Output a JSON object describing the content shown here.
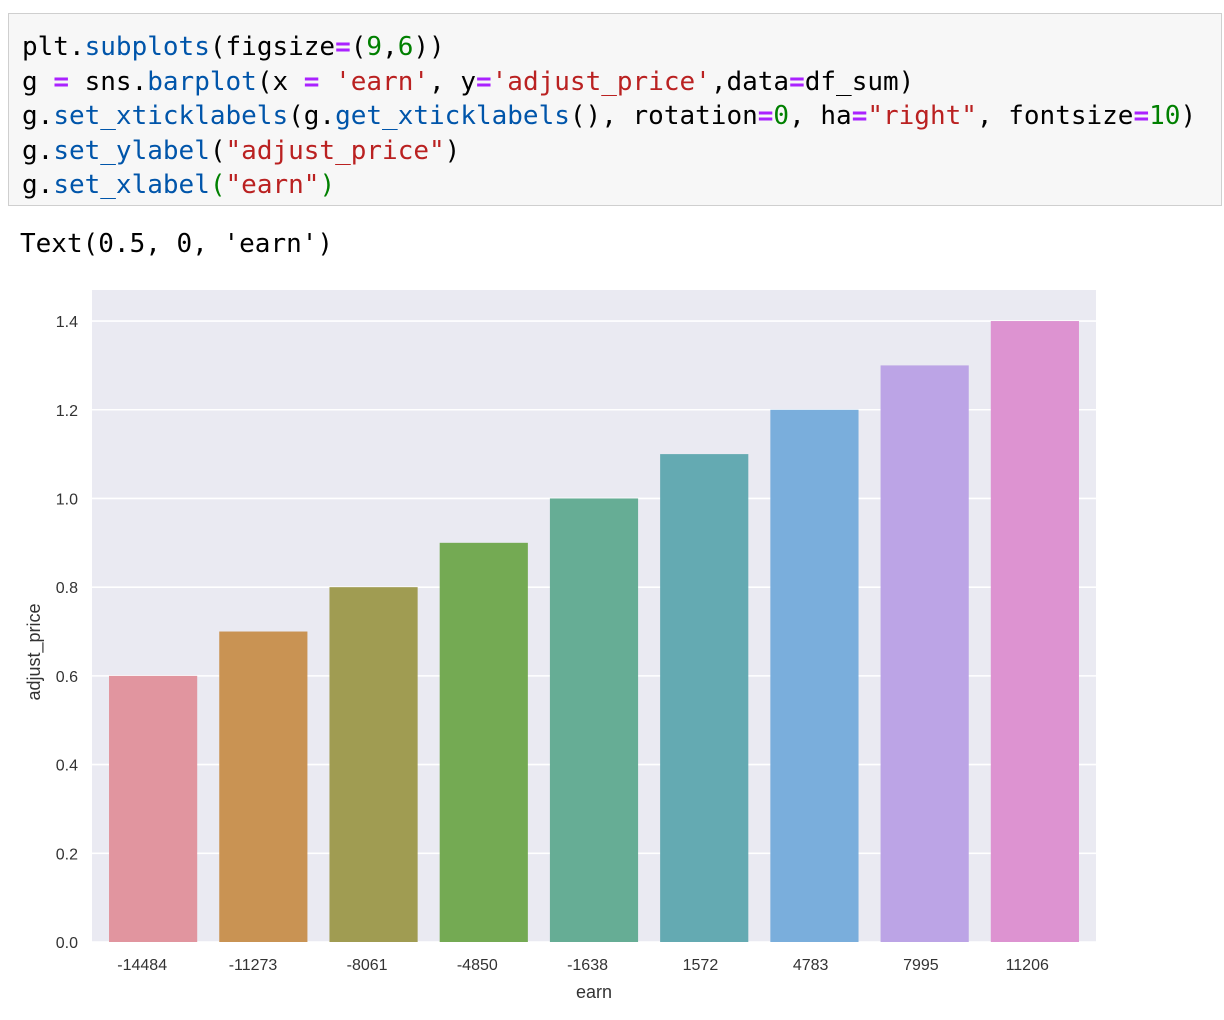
{
  "code_cell": {
    "lines": [
      [
        {
          "t": "plt.",
          "c": ""
        },
        {
          "t": "subplots",
          "c": "fn"
        },
        {
          "t": "(figsize",
          "c": ""
        },
        {
          "t": "=",
          "c": "op"
        },
        {
          "t": "(",
          "c": ""
        },
        {
          "t": "9",
          "c": "num"
        },
        {
          "t": ",",
          "c": ""
        },
        {
          "t": "6",
          "c": "num"
        },
        {
          "t": "))",
          "c": ""
        }
      ],
      [
        {
          "t": "g ",
          "c": ""
        },
        {
          "t": "=",
          "c": "op"
        },
        {
          "t": " sns.",
          "c": ""
        },
        {
          "t": "barplot",
          "c": "fn"
        },
        {
          "t": "(x ",
          "c": ""
        },
        {
          "t": "=",
          "c": "op"
        },
        {
          "t": " ",
          "c": ""
        },
        {
          "t": "'earn'",
          "c": "str"
        },
        {
          "t": ", y",
          "c": ""
        },
        {
          "t": "=",
          "c": "op"
        },
        {
          "t": "'adjust_price'",
          "c": "str"
        },
        {
          "t": ",data",
          "c": ""
        },
        {
          "t": "=",
          "c": "op"
        },
        {
          "t": "df_sum)",
          "c": ""
        }
      ],
      [
        {
          "t": "g.",
          "c": ""
        },
        {
          "t": "set_xticklabels",
          "c": "fn"
        },
        {
          "t": "(g.",
          "c": ""
        },
        {
          "t": "get_xticklabels",
          "c": "fn"
        },
        {
          "t": "(), rotation",
          "c": ""
        },
        {
          "t": "=",
          "c": "op"
        },
        {
          "t": "0",
          "c": "num"
        },
        {
          "t": ", ha",
          "c": ""
        },
        {
          "t": "=",
          "c": "op"
        },
        {
          "t": "\"right\"",
          "c": "str"
        },
        {
          "t": ", fontsize",
          "c": ""
        },
        {
          "t": "=",
          "c": "op"
        },
        {
          "t": "10",
          "c": "num"
        },
        {
          "t": ")",
          "c": ""
        }
      ],
      [
        {
          "t": "g.",
          "c": ""
        },
        {
          "t": "set_ylabel",
          "c": "fn"
        },
        {
          "t": "(",
          "c": ""
        },
        {
          "t": "\"adjust_price\"",
          "c": "str"
        },
        {
          "t": ")",
          "c": ""
        }
      ],
      [
        {
          "t": "g.",
          "c": ""
        },
        {
          "t": "set_xlabel",
          "c": "fn"
        },
        {
          "t": "(",
          "c": "grn"
        },
        {
          "t": "\"earn\"",
          "c": "str"
        },
        {
          "t": ")",
          "c": "grn"
        }
      ]
    ]
  },
  "output_text": "Text(0.5, 0, 'earn')",
  "chart_data": {
    "type": "bar",
    "categories": [
      "-14484",
      "-11273",
      "-8061",
      "-4850",
      "-1638",
      "1572",
      "4783",
      "7995",
      "11206"
    ],
    "values": [
      0.6,
      0.7,
      0.8,
      0.9,
      1.0,
      1.1,
      1.2,
      1.3,
      1.4
    ],
    "colors": [
      "#e1959f",
      "#c99353",
      "#a09c52",
      "#74aa53",
      "#66ad95",
      "#64aab2",
      "#7aaedc",
      "#bca4e6",
      "#dd93d1"
    ],
    "xlabel": "earn",
    "ylabel": "adjust_price",
    "ylim": [
      0,
      1.47
    ],
    "yticks": [
      "0.0",
      "0.2",
      "0.4",
      "0.6",
      "0.8",
      "1.0",
      "1.2",
      "1.4"
    ],
    "ytick_values": [
      0,
      0.2,
      0.4,
      0.6,
      0.8,
      1.0,
      1.2,
      1.4
    ],
    "grid": true,
    "background": "#eaeaf2"
  }
}
